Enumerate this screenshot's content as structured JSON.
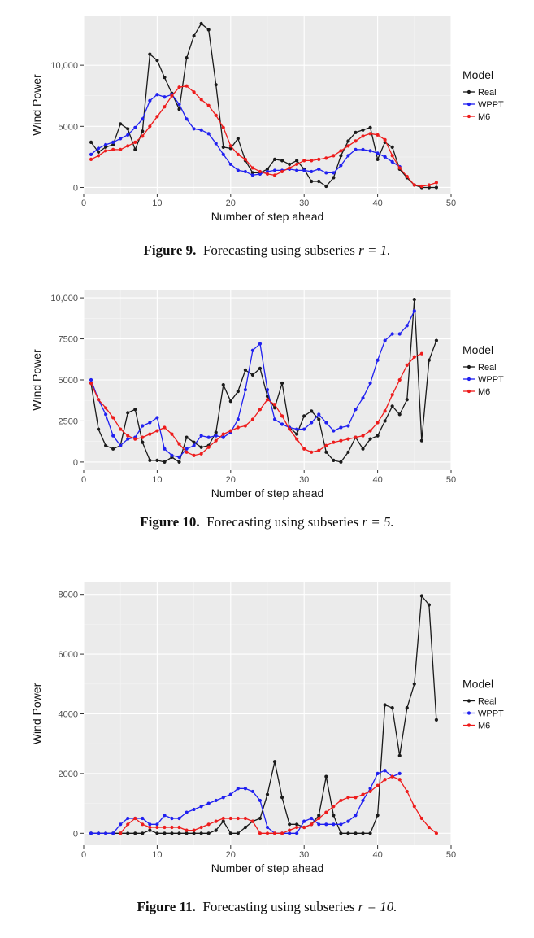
{
  "figures": [
    {
      "caption": {
        "label": "Figure 9.",
        "text": "Forecasting using subseries",
        "expr": "r = 1."
      },
      "chart_data": {
        "type": "line",
        "xlabel": "Number of step ahead",
        "ylabel": "Wind Power",
        "xlim": [
          0,
          50
        ],
        "ylim": [
          -500,
          14000
        ],
        "xticks": [
          0,
          10,
          20,
          30,
          40,
          50
        ],
        "yticks": [
          0,
          5000,
          10000
        ],
        "ytick_labels": [
          "0",
          "5000",
          "10,000"
        ],
        "legend_title": "Model",
        "legend_position": "right",
        "series": [
          {
            "name": "Real",
            "color": "#1a1a1a",
            "x": [
              1,
              2,
              3,
              4,
              5,
              6,
              7,
              8,
              9,
              10,
              11,
              12,
              13,
              14,
              15,
              16,
              17,
              18,
              19,
              20,
              21,
              22,
              23,
              24,
              25,
              26,
              27,
              28,
              29,
              30,
              31,
              32,
              33,
              34,
              35,
              36,
              37,
              38,
              39,
              40,
              41,
              42,
              43,
              44,
              45,
              46,
              47,
              48
            ],
            "y": [
              3700,
              2900,
              3300,
              3500,
              5200,
              4800,
              3100,
              4600,
              10900,
              10400,
              9000,
              7700,
              6400,
              10600,
              12400,
              13400,
              12900,
              8400,
              3300,
              3200,
              4000,
              2200,
              1200,
              1200,
              1500,
              2300,
              2200,
              1900,
              2200,
              1500,
              500,
              500,
              100,
              800,
              2600,
              3800,
              4500,
              4700,
              4900,
              2300,
              3700,
              3300,
              1500,
              800,
              200,
              0,
              0,
              0
            ]
          },
          {
            "name": "WPPT",
            "color": "#2020f0",
            "x": [
              1,
              2,
              3,
              4,
              5,
              6,
              7,
              8,
              9,
              10,
              11,
              12,
              13,
              14,
              15,
              16,
              17,
              18,
              19,
              20,
              21,
              22,
              23,
              24,
              25,
              26,
              27,
              28,
              29,
              30,
              31,
              32,
              33,
              34,
              35,
              36,
              37,
              38,
              39,
              40,
              41,
              42,
              43
            ],
            "y": [
              2700,
              3200,
              3500,
              3700,
              4000,
              4300,
              4900,
              5600,
              7100,
              7600,
              7400,
              7600,
              6800,
              5600,
              4800,
              4700,
              4400,
              3600,
              2700,
              1900,
              1400,
              1300,
              1000,
              1100,
              1300,
              1400,
              1400,
              1500,
              1400,
              1400,
              1300,
              1500,
              1200,
              1200,
              1800,
              2600,
              3100,
              3100,
              3000,
              2800,
              2500,
              2100,
              1700
            ]
          },
          {
            "name": "M6",
            "color": "#ee1c1c",
            "x": [
              1,
              2,
              3,
              4,
              5,
              6,
              7,
              8,
              9,
              10,
              11,
              12,
              13,
              14,
              15,
              16,
              17,
              18,
              19,
              20,
              21,
              22,
              23,
              24,
              25,
              26,
              27,
              28,
              29,
              30,
              31,
              32,
              33,
              34,
              35,
              36,
              37,
              38,
              39,
              40,
              41,
              42,
              43,
              44,
              45,
              46,
              47,
              48
            ],
            "y": [
              2300,
              2600,
              3000,
              3100,
              3100,
              3400,
              3700,
              4200,
              5000,
              5800,
              6600,
              7500,
              8200,
              8300,
              7800,
              7200,
              6700,
              5900,
              4900,
              3400,
              2700,
              2300,
              1600,
              1300,
              1100,
              1000,
              1300,
              1600,
              1900,
              2200,
              2200,
              2300,
              2400,
              2600,
              3000,
              3400,
              3800,
              4200,
              4400,
              4300,
              3900,
              2600,
              1600,
              900,
              200,
              100,
              200,
              400
            ]
          }
        ]
      }
    },
    {
      "caption": {
        "label": "Figure 10.",
        "text": "Forecasting using subseries",
        "expr": "r = 5."
      },
      "chart_data": {
        "type": "line",
        "xlabel": "Number of step ahead",
        "ylabel": "Wind Power",
        "xlim": [
          0,
          50
        ],
        "ylim": [
          -500,
          10500
        ],
        "xticks": [
          0,
          10,
          20,
          30,
          40,
          50
        ],
        "yticks": [
          0,
          2500,
          5000,
          7500,
          10000
        ],
        "ytick_labels": [
          "0",
          "2500",
          "5000",
          "7500",
          "10,000"
        ],
        "legend_title": "Model",
        "legend_position": "right",
        "series": [
          {
            "name": "Real",
            "color": "#1a1a1a",
            "x": [
              1,
              2,
              3,
              4,
              5,
              6,
              7,
              8,
              9,
              10,
              11,
              12,
              13,
              14,
              15,
              16,
              17,
              18,
              19,
              20,
              21,
              22,
              23,
              24,
              25,
              26,
              27,
              28,
              29,
              30,
              31,
              32,
              33,
              34,
              35,
              36,
              37,
              38,
              39,
              40,
              41,
              42,
              43,
              44,
              45,
              46,
              47,
              48
            ],
            "y": [
              4800,
              2000,
              1000,
              800,
              1000,
              3000,
              3200,
              1200,
              100,
              100,
              0,
              300,
              0,
              1500,
              1200,
              900,
              1000,
              1800,
              4700,
              3700,
              4300,
              5600,
              5300,
              5700,
              4000,
              3300,
              4800,
              2100,
              1700,
              2800,
              3100,
              2600,
              600,
              100,
              0,
              600,
              1500,
              800,
              1400,
              1600,
              2500,
              3400,
              2900,
              3800,
              9900,
              1300,
              6200,
              7400
            ]
          },
          {
            "name": "WPPT",
            "color": "#2020f0",
            "x": [
              1,
              2,
              3,
              4,
              5,
              6,
              7,
              8,
              9,
              10,
              11,
              12,
              13,
              14,
              15,
              16,
              17,
              18,
              19,
              20,
              21,
              22,
              23,
              24,
              25,
              26,
              27,
              28,
              29,
              30,
              31,
              32,
              33,
              34,
              35,
              36,
              37,
              38,
              39,
              40,
              41,
              42,
              43,
              44,
              45
            ],
            "y": [
              5000,
              3800,
              2900,
              1600,
              1000,
              1400,
              1500,
              2200,
              2400,
              2700,
              800,
              400,
              300,
              800,
              1000,
              1600,
              1500,
              1600,
              1500,
              1800,
              2600,
              4400,
              6800,
              7200,
              4400,
              2600,
              2300,
              2100,
              2000,
              2000,
              2400,
              2900,
              2400,
              1900,
              2100,
              2200,
              3200,
              3900,
              4800,
              6200,
              7400,
              7800,
              7800,
              8300,
              9200
            ]
          },
          {
            "name": "M6",
            "color": "#ee1c1c",
            "x": [
              1,
              2,
              3,
              4,
              5,
              6,
              7,
              8,
              9,
              10,
              11,
              12,
              13,
              14,
              15,
              16,
              17,
              18,
              19,
              20,
              21,
              22,
              23,
              24,
              25,
              26,
              27,
              28,
              29,
              30,
              31,
              32,
              33,
              34,
              35,
              36,
              37,
              38,
              39,
              40,
              41,
              42,
              43,
              44,
              45,
              46
            ],
            "y": [
              4800,
              3800,
              3300,
              2700,
              2000,
              1600,
              1400,
              1500,
              1700,
              1900,
              2100,
              1700,
              1100,
              600,
              400,
              500,
              900,
              1300,
              1700,
              1900,
              2100,
              2200,
              2600,
              3200,
              3800,
              3500,
              2800,
              2000,
              1400,
              800,
              600,
              700,
              1000,
              1200,
              1300,
              1400,
              1500,
              1600,
              1900,
              2400,
              3100,
              4100,
              5000,
              5900,
              6400,
              6600
            ]
          }
        ]
      }
    },
    {
      "caption": {
        "label": "Figure 11.",
        "text": "Forecasting using subseries",
        "expr": "r = 10."
      },
      "chart_data": {
        "type": "line",
        "xlabel": "Number of step ahead",
        "ylabel": "Wind Power",
        "xlim": [
          0,
          50
        ],
        "ylim": [
          -400,
          8400
        ],
        "xticks": [
          0,
          10,
          20,
          30,
          40,
          50
        ],
        "yticks": [
          0,
          2000,
          4000,
          6000,
          8000
        ],
        "ytick_labels": [
          "0",
          "2000",
          "4000",
          "6000",
          "8000"
        ],
        "legend_title": "Model",
        "legend_position": "right",
        "series": [
          {
            "name": "Real",
            "color": "#1a1a1a",
            "x": [
              1,
              2,
              3,
              4,
              5,
              6,
              7,
              8,
              9,
              10,
              11,
              12,
              13,
              14,
              15,
              16,
              17,
              18,
              19,
              20,
              21,
              22,
              23,
              24,
              25,
              26,
              27,
              28,
              29,
              30,
              31,
              32,
              33,
              34,
              35,
              36,
              37,
              38,
              39,
              40,
              41,
              42,
              43,
              44,
              45,
              46,
              47,
              48
            ],
            "y": [
              0,
              0,
              0,
              0,
              0,
              0,
              0,
              0,
              100,
              0,
              0,
              0,
              0,
              0,
              0,
              0,
              0,
              100,
              400,
              0,
              0,
              200,
              400,
              500,
              1300,
              2400,
              1200,
              300,
              300,
              200,
              300,
              600,
              1900,
              600,
              0,
              0,
              0,
              0,
              0,
              600,
              4300,
              4200,
              2600,
              4200,
              5000,
              7950,
              7650,
              3800
            ]
          },
          {
            "name": "WPPT",
            "color": "#2020f0",
            "x": [
              1,
              2,
              3,
              4,
              5,
              6,
              7,
              8,
              9,
              10,
              11,
              12,
              13,
              14,
              15,
              16,
              17,
              18,
              19,
              20,
              21,
              22,
              23,
              24,
              25,
              26,
              27,
              28,
              29,
              30,
              31,
              32,
              33,
              34,
              35,
              36,
              37,
              38,
              39,
              40,
              41,
              42,
              43
            ],
            "y": [
              0,
              0,
              0,
              0,
              300,
              500,
              500,
              500,
              300,
              300,
              600,
              500,
              500,
              700,
              800,
              900,
              1000,
              1100,
              1200,
              1300,
              1500,
              1500,
              1400,
              1100,
              200,
              0,
              0,
              0,
              0,
              400,
              500,
              300,
              300,
              300,
              300,
              400,
              600,
              1100,
              1500,
              2000,
              2100,
              1900,
              2000
            ]
          },
          {
            "name": "M6",
            "color": "#ee1c1c",
            "x": [
              5,
              6,
              7,
              8,
              9,
              10,
              11,
              12,
              13,
              14,
              15,
              16,
              17,
              18,
              19,
              20,
              21,
              22,
              23,
              24,
              25,
              26,
              27,
              28,
              29,
              30,
              31,
              32,
              33,
              34,
              35,
              36,
              37,
              38,
              39,
              40,
              41,
              42,
              43,
              44,
              45,
              46,
              47,
              48
            ],
            "y": [
              0,
              300,
              500,
              300,
              200,
              200,
              200,
              200,
              200,
              100,
              100,
              200,
              300,
              400,
              500,
              500,
              500,
              500,
              400,
              0,
              0,
              0,
              0,
              100,
              200,
              200,
              300,
              500,
              700,
              900,
              1100,
              1200,
              1200,
              1300,
              1400,
              1600,
              1800,
              1900,
              1800,
              1400,
              900,
              500,
              200,
              0
            ]
          }
        ]
      }
    }
  ]
}
